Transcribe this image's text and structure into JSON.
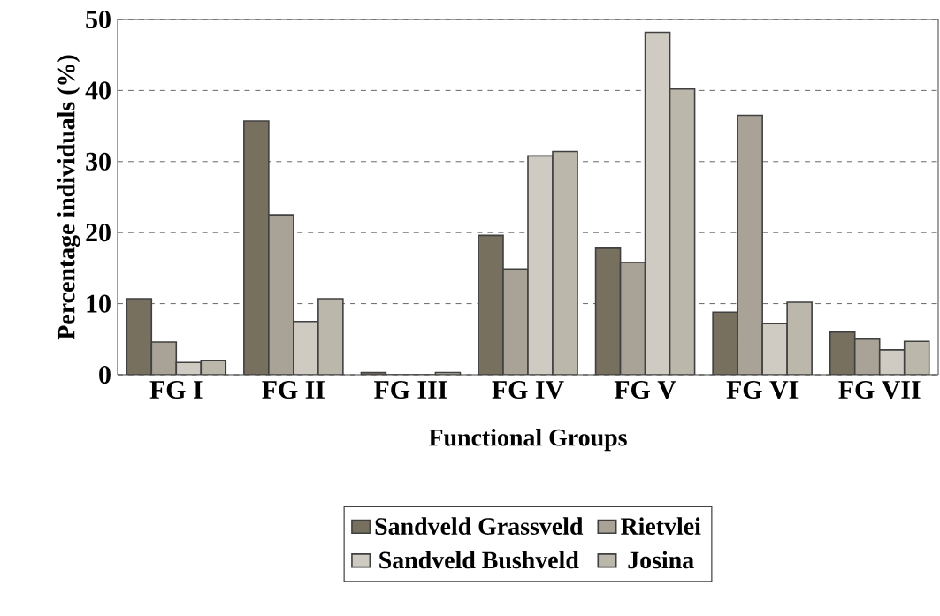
{
  "chart_data": {
    "type": "bar",
    "xlabel": "Functional Groups",
    "ylabel": "Percentage individuals (%)",
    "categories": [
      "FG I",
      "FG II",
      "FG III",
      "FG IV",
      "FG V",
      "FG VI",
      "FG VII"
    ],
    "series": [
      {
        "name": "Sandveld Grassveld",
        "color": "#77705f",
        "values": [
          10.7,
          35.7,
          0.3,
          19.6,
          17.8,
          8.8,
          6.0
        ]
      },
      {
        "name": "Rietvlei",
        "color": "#a8a396",
        "values": [
          4.6,
          22.5,
          0.0,
          14.9,
          15.8,
          36.5,
          5.0
        ]
      },
      {
        "name": "Sandveld Bushveld",
        "color": "#cfcbc2",
        "values": [
          1.7,
          7.5,
          0.0,
          30.8,
          48.2,
          7.2,
          3.5
        ]
      },
      {
        "name": "Josina",
        "color": "#bcb7ab",
        "values": [
          2.0,
          10.7,
          0.3,
          31.4,
          40.2,
          10.2,
          4.7
        ]
      }
    ],
    "ylim": [
      0,
      50
    ],
    "yticks": [
      0,
      10,
      20,
      30,
      40,
      50
    ],
    "grid": "y",
    "legend": "bottom"
  }
}
